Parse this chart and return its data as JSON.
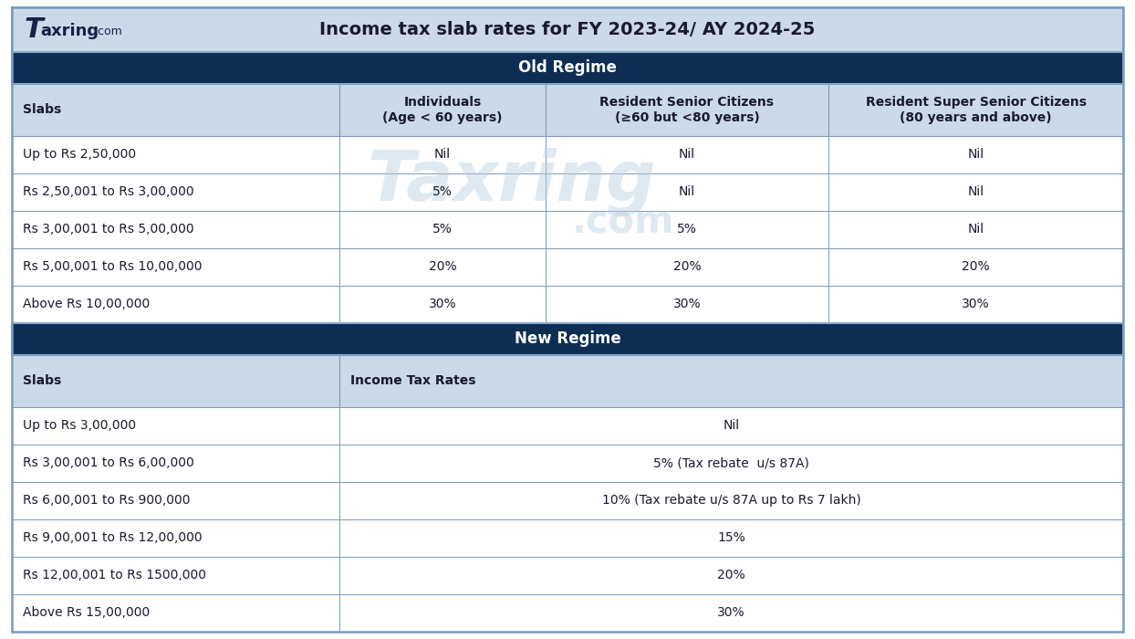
{
  "title": "Income tax slab rates for FY 2023-24/ AY 2024-25",
  "dark_header_color": "#0d2d52",
  "light_header_color": "#ccd9e8",
  "white_row_color": "#ffffff",
  "border_color": "#7a9cbc",
  "header_text_color": "#ffffff",
  "col_header_text_color": "#1a1a2e",
  "cell_text_color": "#1a1a2e",
  "old_regime_label": "Old Regime",
  "new_regime_label": "New Regime",
  "old_col_headers": [
    "Slabs",
    "Individuals\n(Age < 60 years)",
    "Resident Senior Citizens\n(≥60 but <80 years)",
    "Resident Super Senior Citizens\n(80 years and above)"
  ],
  "old_rows": [
    [
      "Up to Rs 2,50,000",
      "Nil",
      "Nil",
      "Nil"
    ],
    [
      "Rs 2,50,001 to Rs 3,00,000",
      "5%",
      "Nil",
      "Nil"
    ],
    [
      "Rs 3,00,001 to Rs 5,00,000",
      "5%",
      "5%",
      "Nil"
    ],
    [
      "Rs 5,00,001 to Rs 10,00,000",
      "20%",
      "20%",
      "20%"
    ],
    [
      "Above Rs 10,00,000",
      "30%",
      "30%",
      "30%"
    ]
  ],
  "new_col_headers": [
    "Slabs",
    "Income Tax Rates"
  ],
  "new_rows": [
    [
      "Up to Rs 3,00,000",
      "Nil"
    ],
    [
      "Rs 3,00,001 to Rs 6,00,000",
      "5% (Tax rebate  u/s 87A)"
    ],
    [
      "Rs 6,00,001 to Rs 900,000",
      "10% (Tax rebate u/s 87A up to Rs 7 lakh)"
    ],
    [
      "Rs 9,00,001 to Rs 12,00,000",
      "15%"
    ],
    [
      "Rs 12,00,001 to Rs 1500,000",
      "20%"
    ],
    [
      "Above Rs 15,00,000",
      "30%"
    ]
  ],
  "outer_bg": "#ffffff",
  "fig_width": 12.44,
  "fig_height": 7.0,
  "dpi": 100
}
